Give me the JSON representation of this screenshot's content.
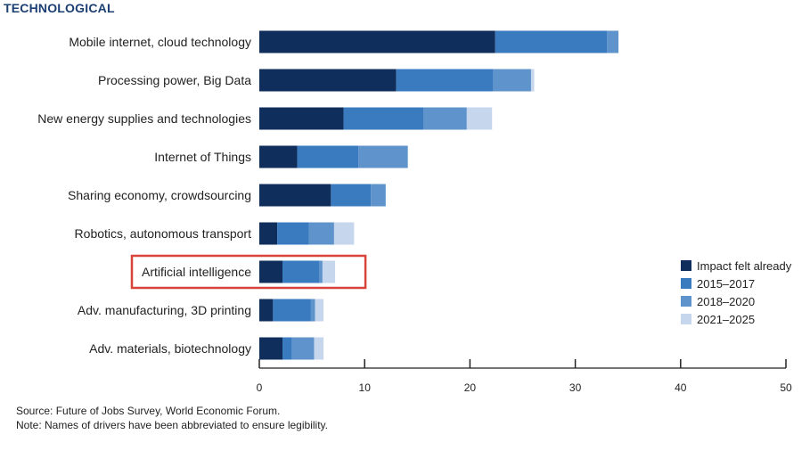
{
  "chart_data": {
    "type": "bar",
    "orientation": "horizontal",
    "stacked": true,
    "title": "TECHNOLOGICAL",
    "categories": [
      "Mobile internet, cloud technology",
      "Processing power, Big Data",
      "New energy supplies and technologies",
      "Internet of Things",
      "Sharing economy, crowdsourcing",
      "Robotics, autonomous transport",
      "Artificial intelligence",
      "Adv. manufacturing, 3D printing",
      "Adv. materials, biotechnology"
    ],
    "series": [
      {
        "name": "Impact felt already",
        "color": "#0f2e5c",
        "values": [
          22.4,
          13.0,
          8.0,
          3.6,
          6.8,
          1.7,
          2.2,
          1.3,
          2.2
        ]
      },
      {
        "name": "2015–2017",
        "color": "#3a7bbf",
        "values": [
          10.6,
          9.2,
          7.6,
          5.8,
          3.8,
          3.0,
          3.5,
          3.6,
          0.9
        ]
      },
      {
        "name": "2018–2020",
        "color": "#5f93cb",
        "values": [
          1.1,
          3.6,
          4.1,
          4.7,
          1.4,
          2.4,
          0.3,
          0.4,
          2.1
        ]
      },
      {
        "name": "2021–2025",
        "color": "#c6d6ec",
        "values": [
          0.0,
          0.3,
          2.4,
          0.0,
          0.0,
          1.9,
          1.2,
          0.8,
          0.9
        ]
      }
    ],
    "xlim": [
      0,
      50
    ],
    "xticks": [
      0,
      10,
      20,
      30,
      40,
      50
    ],
    "xlabel": "",
    "ylabel": "",
    "grid": false,
    "legend_position": "right",
    "highlighted_category": "Artificial intelligence",
    "highlight_color": "#d9443a"
  },
  "notes": {
    "source": "Source: Future of Jobs Survey, World Economic Forum.",
    "note": "Note: Names of drivers have been abbreviated to ensure legibility."
  }
}
